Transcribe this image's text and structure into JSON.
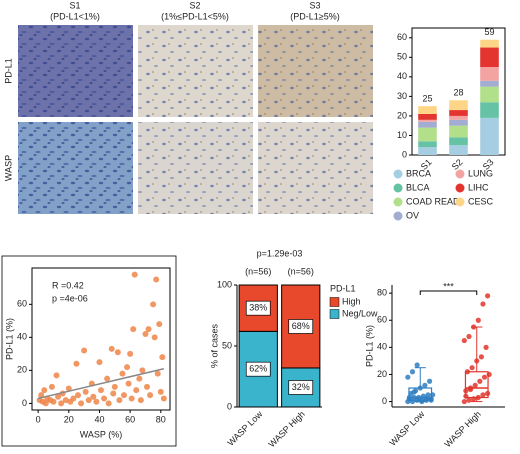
{
  "panels": {
    "columns": [
      {
        "label": "S1",
        "sublabel": "(PD-L1<1%)"
      },
      {
        "label": "S2",
        "sublabel": "(1%≤PD-L1<5%)"
      },
      {
        "label": "S3",
        "sublabel": "(PD-L1≥5%)"
      }
    ],
    "rows": [
      "PD-L1",
      "WASP"
    ]
  },
  "chart_data": [
    {
      "type": "bar",
      "stacked": true,
      "frame": true,
      "legend": "below",
      "xtick_rotation": 45,
      "categories": [
        "S1",
        "S2",
        "S3"
      ],
      "totals": [
        25,
        28,
        59
      ],
      "series": [
        {
          "name": "BRCA",
          "color": "#a6cee3",
          "values": [
            4,
            5,
            19
          ]
        },
        {
          "name": "BLCA",
          "color": "#66c2a5",
          "values": [
            3,
            4,
            8
          ]
        },
        {
          "name": "COAD READ",
          "color": "#b2df8a",
          "values": [
            7,
            6,
            8
          ]
        },
        {
          "name": "OV",
          "color": "#a3acd1",
          "values": [
            3,
            3,
            3
          ]
        },
        {
          "name": "LUNG",
          "color": "#f4a3a3",
          "values": [
            1,
            2,
            7
          ]
        },
        {
          "name": "LIHC",
          "color": "#e3342f",
          "values": [
            3,
            3,
            10
          ]
        },
        {
          "name": "CESC",
          "color": "#fdd587",
          "values": [
            4,
            5,
            4
          ]
        }
      ],
      "ylim": [
        0,
        65
      ],
      "yticks": [
        0,
        10,
        20,
        30,
        40,
        50,
        60
      ]
    },
    {
      "type": "scatter",
      "frame": true,
      "xlabel": "WASP (%)",
      "ylabel": "PD-L1 (%)",
      "color": "#ef8548",
      "annotations": [
        "R =0.42",
        "p =4e-06"
      ],
      "x": [
        1,
        2,
        3,
        4,
        5,
        6,
        8,
        9,
        10,
        12,
        13,
        15,
        16,
        18,
        20,
        21,
        23,
        25,
        26,
        28,
        30,
        31,
        33,
        35,
        36,
        38,
        40,
        41,
        43,
        45,
        46,
        48,
        49,
        50,
        52,
        53,
        55,
        56,
        58,
        59,
        60,
        61,
        62,
        63,
        64,
        66,
        67,
        68,
        70,
        71,
        72,
        73,
        75,
        76,
        77,
        78,
        79,
        80,
        81,
        82
      ],
      "y": [
        2,
        5,
        1,
        8,
        0,
        3,
        2,
        10,
        1,
        17,
        4,
        0,
        6,
        2,
        9,
        1,
        3,
        24,
        5,
        0,
        32,
        7,
        2,
        12,
        4,
        1,
        25,
        8,
        3,
        15,
        0,
        33,
        6,
        10,
        31,
        2,
        18,
        5,
        22,
        12,
        30,
        3,
        45,
        78,
        8,
        15,
        2,
        20,
        42,
        10,
        45,
        5,
        60,
        40,
        75,
        18,
        48,
        7,
        28,
        3
      ],
      "trend": {
        "color": "#888888",
        "x": [
          0,
          82
        ],
        "y": [
          3,
          21
        ]
      },
      "xlim": [
        -4,
        86
      ],
      "ylim": [
        -4,
        82
      ],
      "xticks": [
        0,
        20,
        40,
        60,
        80
      ],
      "yticks": [
        0,
        20,
        40,
        60
      ]
    },
    {
      "type": "bar",
      "stacked": true,
      "title": "p=1.29e-03",
      "n_labels": [
        "(n=56)",
        "(n=56)"
      ],
      "ylabel": "% of cases",
      "edgecolor": "#000000",
      "legend": "right",
      "legend_title": "PD-L1",
      "legend_order": "reversed",
      "xtick_rotation": 45,
      "categories": [
        "WASP Low",
        "WASP High"
      ],
      "series": [
        {
          "name": "Neg/Low",
          "color": "#3ab4cc",
          "values": [
            62,
            32
          ],
          "value_labels": [
            "62%",
            "32%"
          ]
        },
        {
          "name": "High",
          "color": "#e8482b",
          "values": [
            38,
            68
          ],
          "value_labels": [
            "38%",
            "68%"
          ]
        }
      ],
      "ylim": [
        0,
        100
      ],
      "yticks": [
        0,
        50,
        100
      ]
    },
    {
      "type": "box",
      "ylabel": "PD-L1 (%)",
      "significance": "***",
      "xtick_rotation": 45,
      "categories": [
        "WASP Low",
        "WASP High"
      ],
      "colors": [
        "#2e7ec1",
        "#e0352c"
      ],
      "boxes": [
        {
          "min": 0,
          "q1": 1,
          "median": 3,
          "q3": 10,
          "max": 25
        },
        {
          "min": 0,
          "q1": 3,
          "median": 10,
          "q3": 22,
          "max": 55
        }
      ],
      "points": [
        [
          0,
          0,
          1,
          1,
          1,
          2,
          2,
          3,
          3,
          4,
          5,
          5,
          6,
          8,
          10,
          12,
          15,
          18,
          22,
          27,
          0,
          2,
          1,
          3,
          7
        ],
        [
          0,
          1,
          2,
          3,
          5,
          6,
          8,
          10,
          12,
          15,
          18,
          20,
          22,
          25,
          30,
          33,
          40,
          45,
          48,
          55,
          60,
          72,
          78,
          4,
          9
        ]
      ],
      "ylim": [
        -4,
        86
      ],
      "yticks": [
        0,
        20,
        40,
        60,
        80
      ]
    }
  ]
}
